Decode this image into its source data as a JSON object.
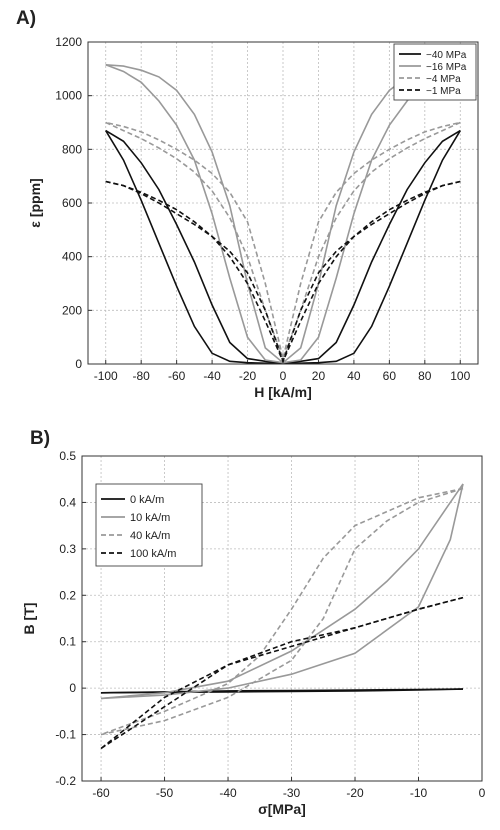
{
  "figure": {
    "panel_a_label": "A)",
    "panel_b_label": "B)"
  },
  "chart_data": [
    {
      "type": "line",
      "panel": "A)",
      "xlabel": "H [kA/m]",
      "ylabel": "ε [ppm]",
      "xlim": [
        -110,
        110
      ],
      "ylim": [
        0,
        1200
      ],
      "xticks": [
        -100,
        -80,
        -60,
        -40,
        -20,
        0,
        20,
        40,
        60,
        80,
        100
      ],
      "yticks": [
        0,
        200,
        400,
        600,
        800,
        1000,
        1200
      ],
      "grid": true,
      "legend_position": "top-right",
      "series": [
        {
          "name": "−40 MPa",
          "color": "#111111",
          "dash": "solid",
          "branches": [
            {
              "x": [
                -100,
                -90,
                -80,
                -70,
                -60,
                -50,
                -40,
                -30,
                -20,
                -10,
                0,
                10,
                20,
                30,
                40,
                50,
                60,
                70,
                80,
                90,
                100
              ],
              "y": [
                870,
                760,
                610,
                450,
                290,
                140,
                40,
                10,
                5,
                3,
                5,
                10,
                20,
                80,
                220,
                380,
                520,
                650,
                750,
                830,
                870
              ]
            },
            {
              "x": [
                100,
                90,
                80,
                70,
                60,
                50,
                40,
                30,
                20,
                10,
                0,
                -10,
                -20,
                -30,
                -40,
                -50,
                -60,
                -70,
                -80,
                -90,
                -100
              ],
              "y": [
                870,
                760,
                610,
                450,
                290,
                140,
                40,
                10,
                5,
                3,
                5,
                10,
                20,
                80,
                220,
                380,
                520,
                650,
                750,
                830,
                870
              ]
            }
          ]
        },
        {
          "name": "−16 MPa",
          "color": "#999999",
          "dash": "solid",
          "branches": [
            {
              "x": [
                -100,
                -90,
                -80,
                -70,
                -60,
                -50,
                -40,
                -30,
                -20,
                -10,
                0,
                10,
                20,
                30,
                40,
                50,
                60,
                70,
                80,
                90,
                100
              ],
              "y": [
                1115,
                1090,
                1050,
                980,
                890,
                760,
                560,
                320,
                100,
                15,
                5,
                60,
                300,
                590,
                790,
                930,
                1020,
                1070,
                1095,
                1110,
                1115
              ]
            },
            {
              "x": [
                100,
                90,
                80,
                70,
                60,
                50,
                40,
                30,
                20,
                10,
                0,
                -10,
                -20,
                -30,
                -40,
                -50,
                -60,
                -70,
                -80,
                -90,
                -100
              ],
              "y": [
                1115,
                1090,
                1050,
                980,
                890,
                760,
                560,
                320,
                100,
                15,
                5,
                60,
                300,
                590,
                790,
                930,
                1020,
                1070,
                1095,
                1110,
                1115
              ]
            }
          ]
        },
        {
          "name": "−4 MPa",
          "color": "#999999",
          "dash": "dashed",
          "branches": [
            {
              "x": [
                -100,
                -90,
                -80,
                -70,
                -60,
                -50,
                -40,
                -30,
                -20,
                -10,
                0,
                10,
                20,
                30,
                40,
                50,
                60,
                70,
                80,
                90,
                100
              ],
              "y": [
                900,
                870,
                840,
                805,
                765,
                715,
                645,
                545,
                400,
                200,
                20,
                300,
                530,
                640,
                710,
                760,
                800,
                835,
                865,
                885,
                900
              ]
            },
            {
              "x": [
                100,
                90,
                80,
                70,
                60,
                50,
                40,
                30,
                20,
                10,
                0,
                -10,
                -20,
                -30,
                -40,
                -50,
                -60,
                -70,
                -80,
                -90,
                -100
              ],
              "y": [
                900,
                870,
                840,
                805,
                765,
                715,
                645,
                545,
                400,
                200,
                20,
                300,
                530,
                640,
                710,
                760,
                800,
                835,
                865,
                885,
                900
              ]
            }
          ]
        },
        {
          "name": "−1 MPa",
          "color": "#111111",
          "dash": "dashed",
          "branches": [
            {
              "x": [
                -100,
                -90,
                -80,
                -70,
                -60,
                -50,
                -40,
                -30,
                -20,
                -10,
                0,
                10,
                20,
                30,
                40,
                50,
                60,
                70,
                80,
                90,
                100
              ],
              "y": [
                680,
                665,
                640,
                610,
                575,
                530,
                475,
                400,
                300,
                160,
                10,
                200,
                340,
                420,
                475,
                520,
                560,
                600,
                635,
                665,
                680
              ]
            },
            {
              "x": [
                100,
                90,
                80,
                70,
                60,
                50,
                40,
                30,
                20,
                10,
                0,
                -10,
                -20,
                -30,
                -40,
                -50,
                -60,
                -70,
                -80,
                -90,
                -100
              ],
              "y": [
                680,
                665,
                640,
                610,
                575,
                530,
                475,
                400,
                300,
                160,
                10,
                200,
                340,
                420,
                475,
                520,
                560,
                600,
                635,
                665,
                680
              ]
            }
          ]
        }
      ]
    },
    {
      "type": "line",
      "panel": "B)",
      "xlabel": "σ[MPa]",
      "ylabel": "B [T]",
      "xlim": [
        -63,
        0
      ],
      "ylim": [
        -0.2,
        0.5
      ],
      "xticks": [
        -60,
        -50,
        -40,
        -30,
        -20,
        -10,
        0
      ],
      "yticks": [
        -0.2,
        -0.1,
        0,
        0.1,
        0.2,
        0.3,
        0.4,
        0.5
      ],
      "grid": true,
      "legend_position": "top-left",
      "series": [
        {
          "name": "0 kA/m",
          "color": "#111111",
          "dash": "solid",
          "branches": [
            {
              "x": [
                -60,
                -50,
                -40,
                -30,
                -20,
                -10,
                -3
              ],
              "y": [
                -0.01,
                -0.008,
                -0.006,
                -0.005,
                -0.004,
                -0.003,
                -0.002
              ]
            },
            {
              "x": [
                -3,
                -10,
                -20,
                -30,
                -40,
                -50,
                -60
              ],
              "y": [
                -0.002,
                -0.004,
                -0.006,
                -0.007,
                -0.008,
                -0.009,
                -0.01
              ]
            }
          ]
        },
        {
          "name": "10 kA/m",
          "color": "#999999",
          "dash": "solid",
          "branches": [
            {
              "x": [
                -60,
                -50,
                -40,
                -30,
                -20,
                -10,
                -5,
                -3
              ],
              "y": [
                -0.022,
                -0.015,
                0.0,
                0.03,
                0.075,
                0.175,
                0.32,
                0.44
              ]
            },
            {
              "x": [
                -3,
                -5,
                -10,
                -15,
                -20,
                -30,
                -40,
                -50,
                -60
              ],
              "y": [
                0.44,
                0.4,
                0.3,
                0.23,
                0.17,
                0.08,
                0.015,
                -0.01,
                -0.022
              ]
            }
          ]
        },
        {
          "name": "40 kA/m",
          "color": "#999999",
          "dash": "dashed",
          "branches": [
            {
              "x": [
                -60,
                -50,
                -40,
                -30,
                -25,
                -20,
                -15,
                -10,
                -3
              ],
              "y": [
                -0.1,
                -0.07,
                -0.02,
                0.06,
                0.15,
                0.3,
                0.36,
                0.4,
                0.43
              ]
            },
            {
              "x": [
                -3,
                -10,
                -20,
                -25,
                -30,
                -35,
                -40,
                -50,
                -60
              ],
              "y": [
                0.43,
                0.41,
                0.35,
                0.28,
                0.17,
                0.07,
                0.01,
                -0.05,
                -0.1
              ]
            }
          ]
        },
        {
          "name": "100 kA/m",
          "color": "#111111",
          "dash": "dashed",
          "branches": [
            {
              "x": [
                -60,
                -50,
                -40,
                -30,
                -20,
                -10,
                -3
              ],
              "y": [
                -0.13,
                -0.04,
                0.05,
                0.09,
                0.13,
                0.17,
                0.195
              ]
            },
            {
              "x": [
                -3,
                -10,
                -20,
                -30,
                -40,
                -50,
                -60
              ],
              "y": [
                0.195,
                0.17,
                0.13,
                0.1,
                0.05,
                -0.02,
                -0.13
              ]
            }
          ]
        }
      ]
    }
  ]
}
